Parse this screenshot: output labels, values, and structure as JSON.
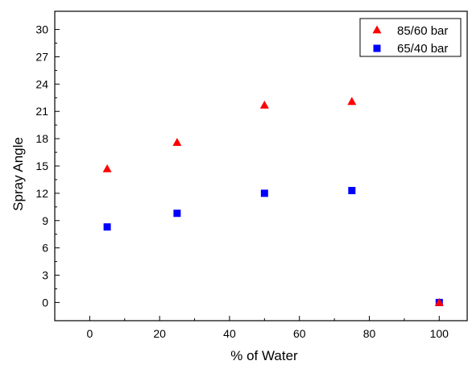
{
  "chart_data": {
    "type": "scatter",
    "xlabel": "% of Water",
    "ylabel": "Spray Angle",
    "xlim": [
      -10,
      108
    ],
    "ylim": [
      -2,
      32
    ],
    "xticks": [
      0,
      20,
      40,
      60,
      80,
      100
    ],
    "yticks": [
      0,
      3,
      6,
      9,
      12,
      15,
      18,
      21,
      24,
      27,
      30
    ],
    "grid": false,
    "legend_position": "top-right",
    "series": [
      {
        "name": "85/60 bar",
        "marker": "triangle",
        "color": "#ff0000",
        "x": [
          5,
          25,
          50,
          75,
          100
        ],
        "y": [
          14.7,
          17.6,
          21.7,
          22.1,
          0
        ]
      },
      {
        "name": "65/40 bar",
        "marker": "square",
        "color": "#0000ff",
        "x": [
          5,
          25,
          50,
          75,
          100
        ],
        "y": [
          8.3,
          9.8,
          12.0,
          12.3,
          0
        ]
      }
    ]
  }
}
